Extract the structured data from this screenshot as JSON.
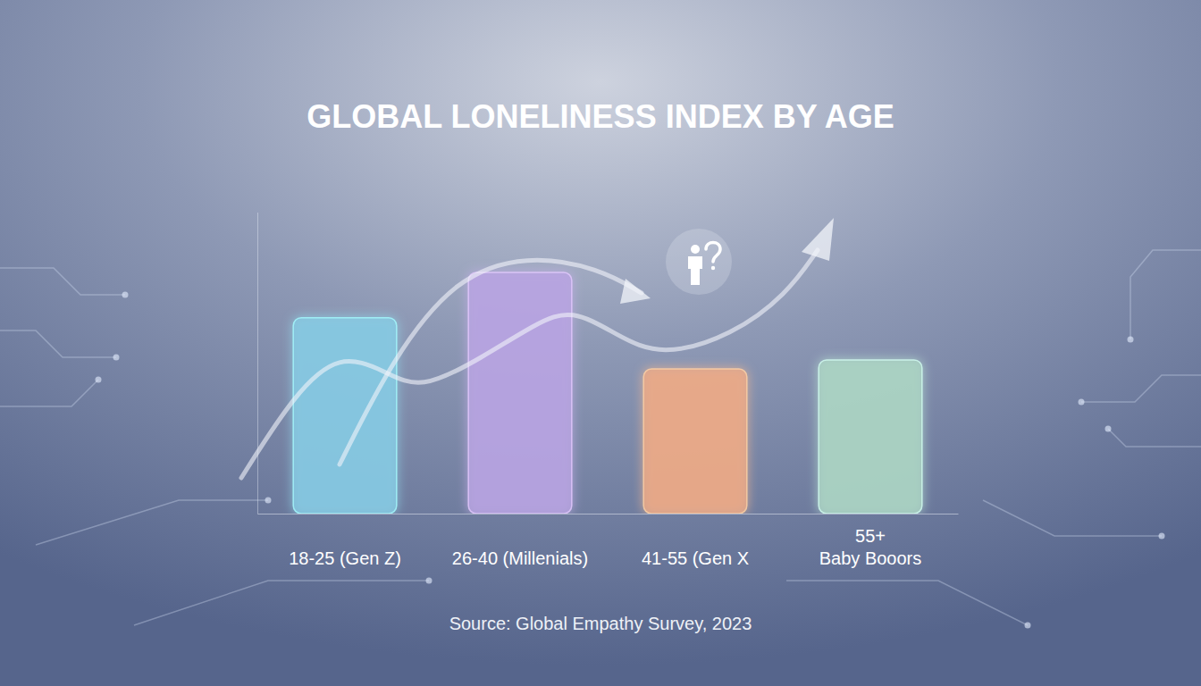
{
  "chart_data": {
    "type": "bar",
    "title": "GLOBAL LONELINESS INDEX BY AGE",
    "categories": [
      "18-25 (Gen Z)",
      "26-40 (Millenials)",
      "41-55 (Gen X",
      "55+\nBaby Booors"
    ],
    "values": [
      65,
      80,
      48,
      51
    ],
    "colors": [
      "#86cbe3",
      "#b9a3e2",
      "#efaa86",
      "#acd6c3"
    ],
    "ylim": [
      0,
      100
    ],
    "grid": false,
    "tick_labels": "x",
    "source": "Source: Global Empathy Survey, 2023"
  }
}
